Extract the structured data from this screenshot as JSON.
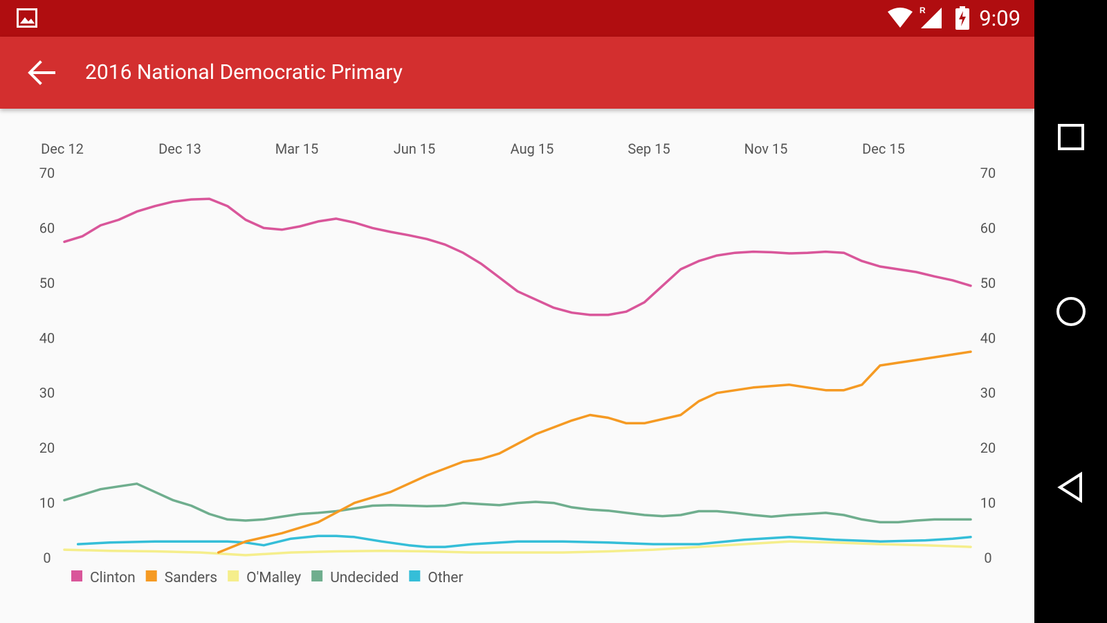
{
  "status_bar": {
    "time": "9:09",
    "notification_icon": "image-icon",
    "icons": [
      "wifi-icon",
      "signal-roaming-icon",
      "battery-charging-icon"
    ]
  },
  "app_bar": {
    "title": "2016 National Democratic Primary",
    "back_icon": "arrow-back-icon"
  },
  "nav_bar": {
    "buttons": [
      "recents-square-icon",
      "home-circle-icon",
      "back-triangle-icon"
    ]
  },
  "colors": {
    "status_bar": "#b00d10",
    "app_bar": "#d32f2f",
    "Clinton": "#d9569a",
    "Sanders": "#f59a23",
    "O'Malley": "#f5ee8c",
    "Undecided": "#6fae8e",
    "Other": "#35bed8"
  },
  "chart_data": {
    "type": "line",
    "x_tick_labels": [
      "Dec 12",
      "Dec 13",
      "Mar 15",
      "Jun 15",
      "Aug 15",
      "Sep 15",
      "Nov 15",
      "Dec 15"
    ],
    "ylim": [
      0,
      70
    ],
    "y_ticks": [
      0,
      10,
      20,
      30,
      40,
      50,
      60,
      70
    ],
    "grid": false,
    "legend_position": "bottom-left",
    "series": [
      {
        "name": "Clinton",
        "color": "#d9569a",
        "x": [
          0,
          2,
          4,
          6,
          8,
          10,
          12,
          14,
          16,
          18,
          20,
          22,
          24,
          26,
          28,
          30,
          32,
          34,
          36,
          38,
          40,
          42,
          44,
          46,
          48,
          50,
          52,
          54,
          56,
          58,
          60,
          62,
          64,
          66,
          68,
          70,
          72,
          74,
          76,
          78,
          80,
          82,
          84,
          86,
          88,
          90,
          92,
          94,
          96,
          98,
          100
        ],
        "values": [
          57.5,
          58.5,
          60.5,
          61.5,
          63,
          64,
          64.8,
          65.2,
          65.3,
          64,
          61.5,
          60,
          59.7,
          60.3,
          61.2,
          61.7,
          61,
          60,
          59.3,
          58.7,
          58,
          57,
          55.5,
          53.5,
          51,
          48.5,
          47,
          45.5,
          44.6,
          44.2,
          44.2,
          44.8,
          46.5,
          49.5,
          52.5,
          54,
          55,
          55.5,
          55.7,
          55.6,
          55.4,
          55.5,
          55.7,
          55.5,
          54,
          53,
          52.5,
          52,
          51.2,
          50.5,
          49.5
        ]
      },
      {
        "name": "Sanders",
        "color": "#f59a23",
        "x": [
          17,
          20,
          24,
          28,
          32,
          36,
          40,
          44,
          46,
          48,
          52,
          56,
          58,
          60,
          62,
          64,
          68,
          70,
          72,
          76,
          80,
          82,
          84,
          86,
          88,
          90,
          92,
          94,
          96,
          98,
          100
        ],
        "values": [
          1,
          3,
          4.5,
          6.5,
          10,
          12,
          15,
          17.5,
          18,
          19,
          22.5,
          25,
          26,
          25.5,
          24.5,
          24.5,
          26,
          28.5,
          30,
          31,
          31.5,
          31,
          30.5,
          30.5,
          31.5,
          35,
          35.5,
          36,
          36.5,
          37,
          37.5
        ]
      },
      {
        "name": "O'Malley",
        "color": "#f5ee8c",
        "x": [
          0,
          5,
          10,
          15,
          20,
          25,
          30,
          35,
          40,
          45,
          50,
          55,
          60,
          65,
          70,
          75,
          80,
          85,
          90,
          95,
          100
        ],
        "values": [
          1.5,
          1.3,
          1.2,
          1,
          0.5,
          1,
          1.2,
          1.3,
          1.2,
          1,
          1,
          1,
          1.2,
          1.5,
          2,
          2.5,
          3,
          2.8,
          2.5,
          2.3,
          2
        ]
      },
      {
        "name": "Undecided",
        "color": "#6fae8e",
        "x": [
          0,
          2,
          4,
          6,
          8,
          10,
          12,
          14,
          16,
          18,
          20,
          22,
          24,
          26,
          28,
          30,
          32,
          34,
          36,
          38,
          40,
          42,
          44,
          46,
          48,
          50,
          52,
          54,
          56,
          58,
          60,
          62,
          64,
          66,
          68,
          70,
          72,
          74,
          76,
          78,
          80,
          82,
          84,
          86,
          88,
          90,
          92,
          94,
          96,
          98,
          100
        ],
        "values": [
          10.5,
          11.5,
          12.5,
          13,
          13.5,
          12,
          10.5,
          9.5,
          8,
          7,
          6.8,
          7,
          7.5,
          8,
          8.2,
          8.5,
          9,
          9.5,
          9.6,
          9.5,
          9.4,
          9.5,
          10,
          9.8,
          9.6,
          10,
          10.2,
          10,
          9.2,
          8.8,
          8.6,
          8.2,
          7.8,
          7.6,
          7.8,
          8.5,
          8.5,
          8.2,
          7.8,
          7.5,
          7.8,
          8,
          8.2,
          7.8,
          7,
          6.5,
          6.5,
          6.8,
          7,
          7,
          7
        ]
      },
      {
        "name": "Other",
        "color": "#35bed8",
        "x": [
          1.5,
          5,
          10,
          15,
          18,
          20,
          22,
          25,
          28,
          30,
          32,
          35,
          38,
          40,
          42,
          45,
          50,
          55,
          60,
          65,
          70,
          75,
          80,
          85,
          90,
          95,
          98,
          100
        ],
        "values": [
          2.5,
          2.8,
          3,
          3,
          3,
          2.8,
          2.3,
          3.5,
          4,
          4,
          3.8,
          3,
          2.3,
          2,
          2,
          2.5,
          3,
          3,
          2.8,
          2.5,
          2.5,
          3.3,
          3.8,
          3.3,
          3,
          3.2,
          3.5,
          3.8
        ]
      }
    ]
  }
}
